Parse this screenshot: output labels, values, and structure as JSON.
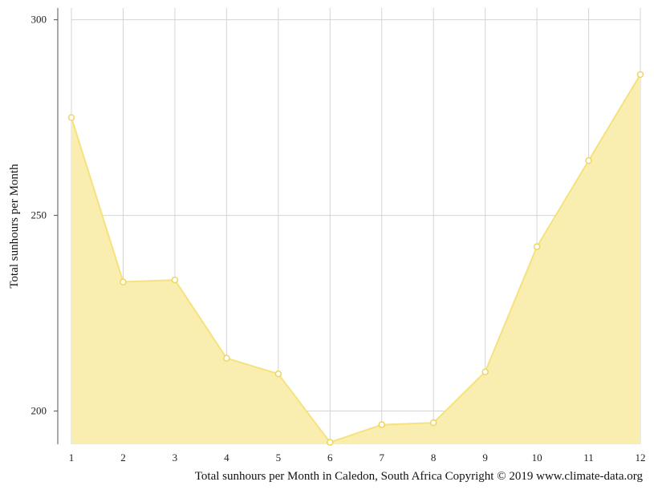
{
  "chart_data": {
    "type": "area",
    "x": [
      1,
      2,
      3,
      4,
      5,
      6,
      7,
      8,
      9,
      10,
      11,
      12
    ],
    "y": [
      275,
      233,
      233.5,
      213.5,
      209.5,
      192,
      196.5,
      197,
      210,
      242,
      264,
      286
    ],
    "xlabel": "",
    "ylabel": "Total sunhours per Month",
    "ylim": [
      191.5,
      303
    ],
    "yticks": [
      200,
      250,
      300
    ],
    "xticks": [
      1,
      2,
      3,
      4,
      5,
      6,
      7,
      8,
      9,
      10,
      11,
      12
    ],
    "grid": true,
    "legend": "none",
    "caption": "Total sunhours per Month in Caledon, South Africa Copyright © 2019 www.climate-data.org",
    "colors": {
      "fill": "#f9eeb0",
      "line": "#f5e27e",
      "marker_stroke": "#efd560",
      "marker_fill": "#ffffff",
      "grid": "#d4d4d4",
      "axis": "#555555"
    }
  }
}
